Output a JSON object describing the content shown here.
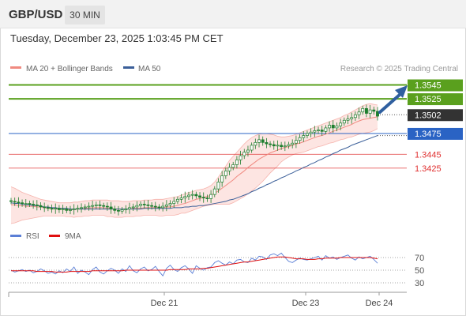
{
  "header": {
    "pair": "GBP/USD",
    "timeframe": "30 MIN",
    "datetime": "Tuesday, December 23, 2025 1:03:45 PM CET"
  },
  "colors": {
    "bb_line": "#f08a80",
    "bb_fill": "#fde0dd",
    "ma50": "#3b5f99",
    "candle": "#1e7e2e",
    "green_level": "#5aa01e",
    "blue_level": "#2a63c4",
    "red_level": "#e03030",
    "current_price": "#333333",
    "rsi": "#5b7fd6",
    "rsi_ma": "#e01010",
    "arrow": "#2f5f9f"
  },
  "chart_data": [
    {
      "type": "candlestick",
      "title": "GBP/USD",
      "legend": [
        "MA 20 + Bollinger Bands",
        "MA 50"
      ],
      "legend_placement": "top-left",
      "credit": "Research © 2025 Trading Central",
      "x_ticks": [
        "Dec 21",
        "Dec 23",
        "Dec 24"
      ],
      "ylim": [
        1.3345,
        1.3557
      ],
      "levels": [
        {
          "value": 1.3545,
          "label": "1.3545",
          "kind": "resistance"
        },
        {
          "value": 1.3525,
          "label": "1.3525",
          "kind": "resistance"
        },
        {
          "value": 1.3475,
          "label": "1.3475",
          "kind": "pivot"
        },
        {
          "value": 1.3445,
          "label": "1.3445",
          "kind": "support"
        },
        {
          "value": 1.3425,
          "label": "1.3425",
          "kind": "support"
        }
      ],
      "current_price": {
        "value": 1.3502,
        "label": "1.3502"
      },
      "close_series": [
        1.3377,
        1.3376,
        1.3375,
        1.3374,
        1.3374,
        1.3373,
        1.3372,
        1.3371,
        1.3369,
        1.3368,
        1.3367,
        1.3366,
        1.3367,
        1.3365,
        1.3366,
        1.3364,
        1.3365,
        1.3366,
        1.3367,
        1.3368,
        1.3369,
        1.337,
        1.3371,
        1.3372,
        1.3371,
        1.337,
        1.3369,
        1.3366,
        1.3364,
        1.3363,
        1.3365,
        1.3366,
        1.3368,
        1.3369,
        1.3371,
        1.3373,
        1.3372,
        1.3371,
        1.337,
        1.3369,
        1.3368,
        1.337,
        1.3372,
        1.3374,
        1.3377,
        1.338,
        1.3382,
        1.3384,
        1.3386,
        1.3387,
        1.3385,
        1.3383,
        1.3382,
        1.3381,
        1.3387,
        1.3395,
        1.3405,
        1.3414,
        1.3421,
        1.3426,
        1.343,
        1.3437,
        1.3443,
        1.3448,
        1.3451,
        1.3458,
        1.3462,
        1.3466,
        1.3462,
        1.346,
        1.3459,
        1.3457,
        1.3458,
        1.3456,
        1.3457,
        1.3459,
        1.3461,
        1.3465,
        1.3469,
        1.3472,
        1.3475,
        1.3477,
        1.3479,
        1.348,
        1.3478,
        1.3483,
        1.3487,
        1.3483,
        1.3486,
        1.349,
        1.3494,
        1.3496,
        1.3498,
        1.3502,
        1.3506,
        1.3511,
        1.3504,
        1.3509,
        1.3507,
        1.35
      ],
      "ma20": [
        1.3372,
        1.3372,
        1.3371,
        1.3371,
        1.337,
        1.337,
        1.337,
        1.3369,
        1.3369,
        1.3368,
        1.3367,
        1.3367,
        1.3366,
        1.3366,
        1.3366,
        1.3365,
        1.3365,
        1.3365,
        1.3366,
        1.3366,
        1.3367,
        1.3367,
        1.3368,
        1.3368,
        1.3368,
        1.3368,
        1.3367,
        1.3367,
        1.3366,
        1.3366,
        1.3366,
        1.3366,
        1.3366,
        1.3367,
        1.3367,
        1.3367,
        1.3368,
        1.3368,
        1.3368,
        1.3368,
        1.3368,
        1.3368,
        1.3369,
        1.3369,
        1.337,
        1.3371,
        1.3373,
        1.3374,
        1.3376,
        1.3378,
        1.338,
        1.3381,
        1.3383,
        1.3384,
        1.3386,
        1.3389,
        1.3392,
        1.3396,
        1.34,
        1.3404,
        1.3408,
        1.3413,
        1.3417,
        1.3421,
        1.3426,
        1.343,
        1.3434,
        1.3438,
        1.3441,
        1.3444,
        1.3447,
        1.3449,
        1.3451,
        1.3453,
        1.3455,
        1.3456,
        1.3458,
        1.346,
        1.3461,
        1.3463,
        1.3465,
        1.3467,
        1.3469,
        1.3471,
        1.3472,
        1.3474,
        1.3476,
        1.3478,
        1.348,
        1.3482,
        1.3484,
        1.3486,
        1.3488,
        1.3491,
        1.3493,
        1.3495,
        1.3496,
        1.3497,
        1.3498,
        1.3499
      ],
      "ma50": [
        1.3375,
        1.3374,
        1.3374,
        1.3373,
        1.3372,
        1.3372,
        1.3371,
        1.3371,
        1.337,
        1.3369,
        1.3369,
        1.3368,
        1.3368,
        1.3367,
        1.3367,
        1.3367,
        1.3366,
        1.3366,
        1.3366,
        1.3366,
        1.3366,
        1.3366,
        1.3366,
        1.3366,
        1.3366,
        1.3366,
        1.3366,
        1.3366,
        1.3366,
        1.3366,
        1.3366,
        1.3366,
        1.3366,
        1.3366,
        1.3366,
        1.3366,
        1.3367,
        1.3367,
        1.3367,
        1.3367,
        1.3367,
        1.3367,
        1.3367,
        1.3367,
        1.3368,
        1.3368,
        1.3368,
        1.3369,
        1.3369,
        1.337,
        1.337,
        1.3371,
        1.3371,
        1.3372,
        1.3373,
        1.3374,
        1.3375,
        1.3376,
        1.3377,
        1.3379,
        1.338,
        1.3382,
        1.3384,
        1.3386,
        1.3388,
        1.3391,
        1.3393,
        1.3396,
        1.3398,
        1.3401,
        1.3403,
        1.3406,
        1.3408,
        1.3411,
        1.3413,
        1.3416,
        1.3418,
        1.3421,
        1.3423,
        1.3426,
        1.3428,
        1.3431,
        1.3433,
        1.3436,
        1.3438,
        1.3441,
        1.3443,
        1.3446,
        1.3448,
        1.3451,
        1.3453,
        1.3455,
        1.3458,
        1.346,
        1.3462,
        1.3464,
        1.3466,
        1.3468,
        1.347,
        1.3472
      ],
      "bb_upper": [
        1.3398,
        1.3396,
        1.3393,
        1.339,
        1.3388,
        1.3386,
        1.3384,
        1.3382,
        1.338,
        1.3379,
        1.3378,
        1.3377,
        1.3376,
        1.3375,
        1.3375,
        1.3375,
        1.3375,
        1.3376,
        1.3376,
        1.3377,
        1.3378,
        1.3378,
        1.3379,
        1.3379,
        1.3379,
        1.3379,
        1.3379,
        1.3378,
        1.3378,
        1.3378,
        1.3377,
        1.3377,
        1.3377,
        1.3378,
        1.3378,
        1.3378,
        1.3379,
        1.3379,
        1.3379,
        1.338,
        1.338,
        1.338,
        1.3381,
        1.3382,
        1.3383,
        1.3384,
        1.3386,
        1.3388,
        1.339,
        1.3391,
        1.3393,
        1.3394,
        1.3395,
        1.3397,
        1.34,
        1.3405,
        1.3412,
        1.342,
        1.3428,
        1.3436,
        1.3442,
        1.3448,
        1.3454,
        1.346,
        1.3465,
        1.3469,
        1.3472,
        1.3474,
        1.3475,
        1.3475,
        1.3474,
        1.3473,
        1.3471,
        1.347,
        1.347,
        1.3471,
        1.3472,
        1.3474,
        1.3476,
        1.3478,
        1.348,
        1.3482,
        1.3484,
        1.3486,
        1.3488,
        1.349,
        1.3492,
        1.3494,
        1.3496,
        1.3498,
        1.3501,
        1.3503,
        1.3506,
        1.3509,
        1.3512,
        1.3515,
        1.3517,
        1.3518,
        1.3517,
        1.3516
      ],
      "bb_lower": [
        1.3345,
        1.3346,
        1.3348,
        1.335,
        1.3351,
        1.3352,
        1.3353,
        1.3354,
        1.3355,
        1.3356,
        1.3356,
        1.3356,
        1.3356,
        1.3356,
        1.3356,
        1.3355,
        1.3355,
        1.3354,
        1.3355,
        1.3355,
        1.3356,
        1.3356,
        1.3357,
        1.3357,
        1.3357,
        1.3357,
        1.3355,
        1.3355,
        1.3354,
        1.3354,
        1.3354,
        1.3355,
        1.3355,
        1.3355,
        1.3356,
        1.3356,
        1.3357,
        1.3357,
        1.3357,
        1.3357,
        1.3356,
        1.3356,
        1.3357,
        1.3357,
        1.3357,
        1.3358,
        1.336,
        1.336,
        1.3362,
        1.3364,
        1.3366,
        1.3368,
        1.337,
        1.3371,
        1.3372,
        1.3373,
        1.3373,
        1.3373,
        1.3373,
        1.3373,
        1.3375,
        1.3378,
        1.3381,
        1.3384,
        1.3388,
        1.3392,
        1.3396,
        1.3401,
        1.3406,
        1.3412,
        1.3418,
        1.3423,
        1.3428,
        1.3434,
        1.3438,
        1.3441,
        1.3444,
        1.3446,
        1.3447,
        1.3448,
        1.345,
        1.3452,
        1.3454,
        1.3456,
        1.3457,
        1.3459,
        1.3461,
        1.3462,
        1.3464,
        1.3466,
        1.3467,
        1.3469,
        1.347,
        1.3472,
        1.3474,
        1.3475,
        1.3476,
        1.3477,
        1.3479,
        1.3482
      ]
    },
    {
      "type": "line",
      "legend": [
        "RSI",
        "9MA"
      ],
      "legend_placement": "top-left",
      "ylim": [
        20,
        80
      ],
      "y_ticks": [
        "70",
        "50",
        "30"
      ],
      "series": [
        {
          "name": "RSI",
          "values": [
            50,
            47,
            49,
            51,
            48,
            50,
            46,
            48,
            52,
            49,
            45,
            47,
            44,
            49,
            46,
            52,
            48,
            55,
            45,
            50,
            47,
            43,
            51,
            55,
            47,
            44,
            49,
            53,
            50,
            45,
            52,
            48,
            57,
            49,
            46,
            52,
            55,
            49,
            51,
            56,
            48,
            41,
            53,
            58,
            51,
            48,
            54,
            57,
            52,
            45,
            57,
            53,
            50,
            54,
            55,
            62,
            65,
            61,
            58,
            63,
            60,
            66,
            67,
            63,
            62,
            69,
            66,
            72,
            71,
            67,
            74,
            76,
            73,
            77,
            70,
            64,
            62,
            66,
            69,
            67,
            66,
            68,
            70,
            72,
            66,
            73,
            69,
            71,
            67,
            70,
            72,
            74,
            69,
            66,
            71,
            68,
            70,
            72,
            67,
            61
          ]
        },
        {
          "name": "9MA",
          "values": [
            49,
            49,
            49,
            49,
            49,
            49,
            49,
            48,
            48,
            48,
            48,
            48,
            47,
            47,
            47,
            47,
            48,
            48,
            48,
            48,
            48,
            48,
            49,
            49,
            49,
            49,
            49,
            49,
            49,
            49,
            49,
            50,
            50,
            50,
            50,
            50,
            50,
            50,
            50,
            50,
            50,
            50,
            50,
            51,
            51,
            51,
            51,
            51,
            52,
            52,
            52,
            52,
            53,
            53,
            54,
            55,
            56,
            57,
            58,
            59,
            60,
            61,
            62,
            63,
            63,
            64,
            65,
            66,
            67,
            68,
            69,
            70,
            71,
            71,
            71,
            70,
            69,
            68,
            68,
            68,
            67,
            67,
            67,
            68,
            68,
            69,
            69,
            69,
            69,
            70,
            70,
            70,
            70,
            70,
            70,
            70,
            70,
            70,
            69,
            68
          ]
        }
      ]
    }
  ]
}
